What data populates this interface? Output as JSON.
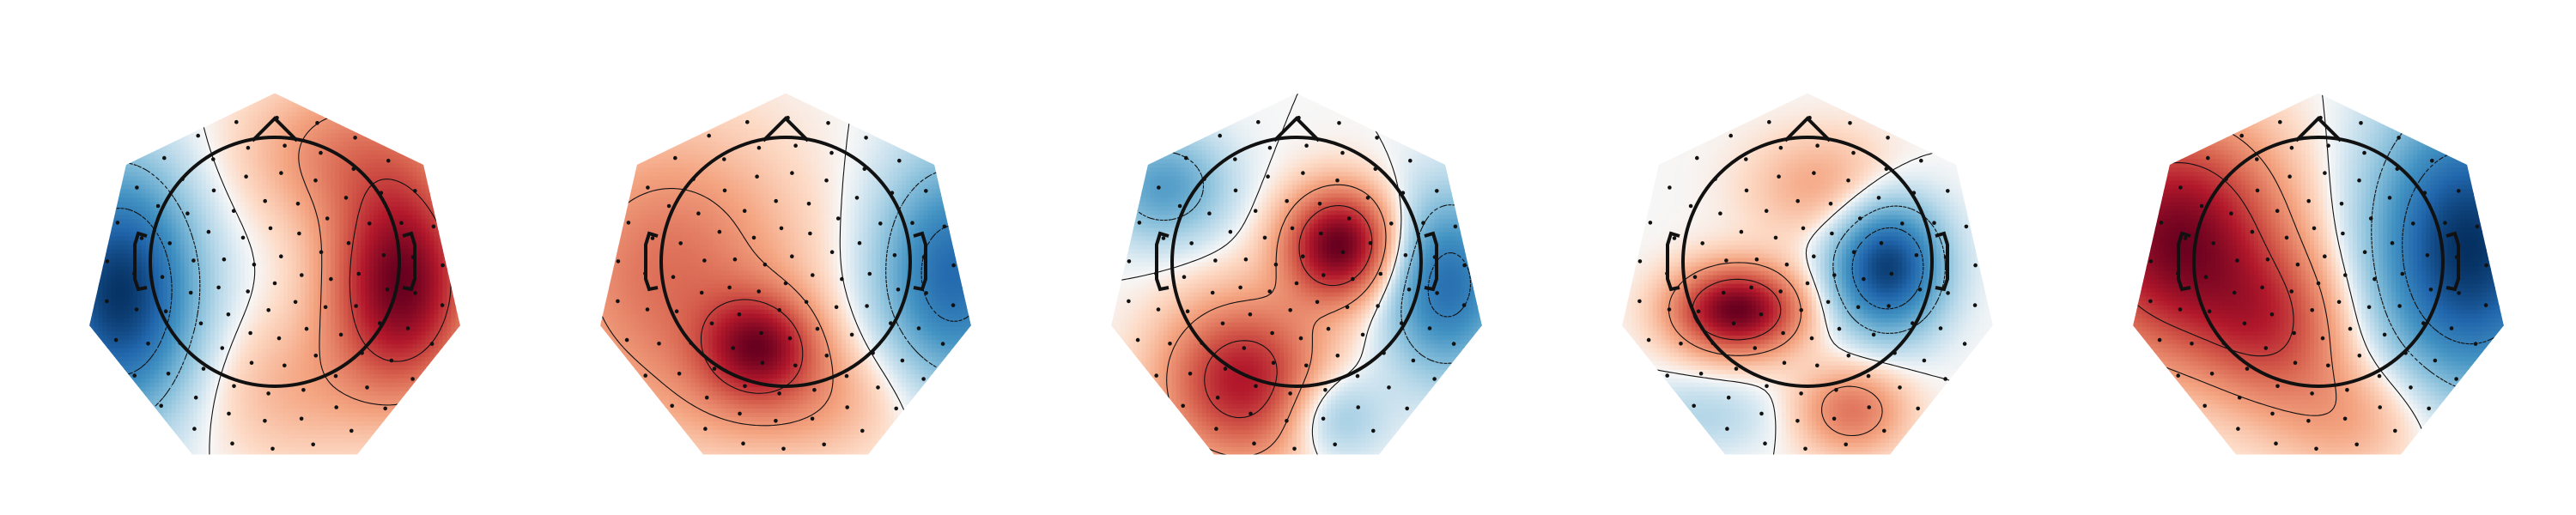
{
  "chart_data": {
    "type": "heatmap",
    "subtype": "eeg-topomap",
    "panel_count": 5,
    "colormap": "RdBu_r",
    "colors": {
      "positive": "#67001f",
      "negative": "#053061",
      "neutral": "#f7f7f7",
      "outline": "#000000"
    },
    "legend": "none",
    "grid": false,
    "sensor_markers": true,
    "contour_lines": true,
    "head_outline": true,
    "topomaps": [
      {
        "components": [
          {
            "cx": 0.72,
            "cy": 0.0,
            "sx": 0.28,
            "sy": 0.42,
            "amp": 1.0
          },
          {
            "cx": -0.88,
            "cy": -0.05,
            "sx": 0.3,
            "sy": 0.48,
            "amp": -1.0
          },
          {
            "cx": 0.4,
            "cy": 0.75,
            "sx": 0.4,
            "sy": 0.3,
            "amp": 0.35
          },
          {
            "cx": 0.1,
            "cy": -0.6,
            "sx": 0.35,
            "sy": 0.3,
            "amp": 0.2
          }
        ]
      },
      {
        "components": [
          {
            "cx": -0.15,
            "cy": -0.35,
            "sx": 0.22,
            "sy": 0.2,
            "amp": 0.85
          },
          {
            "cx": -0.65,
            "cy": 0.05,
            "sx": 0.5,
            "sy": 0.55,
            "amp": 0.55
          },
          {
            "cx": 0.95,
            "cy": 0.05,
            "sx": 0.3,
            "sy": 0.45,
            "amp": -0.9
          },
          {
            "cx": 0.1,
            "cy": -0.65,
            "sx": 0.45,
            "sy": 0.25,
            "amp": 0.3
          }
        ]
      },
      {
        "components": [
          {
            "cx": 0.25,
            "cy": 0.22,
            "sx": 0.22,
            "sy": 0.22,
            "amp": 0.8
          },
          {
            "cx": -0.3,
            "cy": -0.55,
            "sx": 0.32,
            "sy": 0.32,
            "amp": 0.6
          },
          {
            "cx": 0.85,
            "cy": 0.0,
            "sx": 0.25,
            "sy": 0.35,
            "amp": -0.55
          },
          {
            "cx": -0.75,
            "cy": 0.55,
            "sx": 0.25,
            "sy": 0.22,
            "amp": -0.35
          },
          {
            "cx": 0.2,
            "cy": -0.75,
            "sx": 0.2,
            "sy": 0.18,
            "amp": -0.25
          }
        ]
      },
      {
        "components": [
          {
            "cx": -0.4,
            "cy": -0.15,
            "sx": 0.25,
            "sy": 0.17,
            "amp": 0.95
          },
          {
            "cx": 0.45,
            "cy": 0.1,
            "sx": 0.22,
            "sy": 0.26,
            "amp": -0.9
          },
          {
            "cx": 0.25,
            "cy": -0.72,
            "sx": 0.22,
            "sy": 0.18,
            "amp": 0.4
          },
          {
            "cx": 0.1,
            "cy": 0.55,
            "sx": 0.3,
            "sy": 0.22,
            "amp": 0.25
          },
          {
            "cx": -0.6,
            "cy": -0.75,
            "sx": 0.3,
            "sy": 0.15,
            "amp": -0.15
          }
        ]
      },
      {
        "components": [
          {
            "cx": -0.8,
            "cy": 0.25,
            "sx": 0.42,
            "sy": 0.45,
            "amp": 1.1
          },
          {
            "cx": 0.85,
            "cy": 0.2,
            "sx": 0.38,
            "sy": 0.55,
            "amp": -1.15
          },
          {
            "cx": -0.25,
            "cy": -0.25,
            "sx": 0.3,
            "sy": 0.3,
            "amp": 0.55
          },
          {
            "cx": 0.2,
            "cy": -0.75,
            "sx": 0.35,
            "sy": 0.25,
            "amp": 0.3
          }
        ]
      }
    ]
  }
}
